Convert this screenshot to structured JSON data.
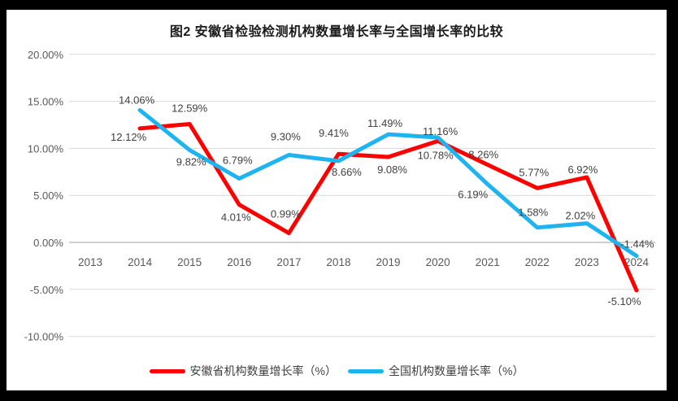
{
  "title": "图2 安徽省检验检测机构数量增长率与全国增长率的比较",
  "colors": {
    "anhui_line": "#FE0000",
    "national_line": "#1EB4F0",
    "gridline": "#D9D9D9",
    "zero_axis": "#BFBFBF",
    "axis_text": "#595959",
    "data_label_text": "#404040",
    "frame": "#000000",
    "background": "#FFFFFF"
  },
  "legend": [
    {
      "label": "安徽省机构数量增长率（%）",
      "color": "#FE0000"
    },
    {
      "label": "全国机构数量增长率（%）",
      "color": "#1EB4F0"
    }
  ],
  "chart_data": {
    "type": "line",
    "title": "图2 安徽省检验检测机构数量增长率与全国增长率的比较",
    "categories": [
      2013,
      2014,
      2015,
      2016,
      2017,
      2018,
      2019,
      2020,
      2021,
      2022,
      2023,
      2024
    ],
    "series": [
      {
        "name": "安徽省机构数量增长率（%）",
        "color": "#FE0000",
        "start_index": 1,
        "values": [
          12.12,
          12.59,
          4.01,
          0.99,
          9.41,
          9.08,
          10.78,
          8.26,
          5.77,
          6.92,
          -5.1
        ],
        "labels": [
          "12.12%",
          "12.59%",
          "4.01%",
          "0.99%",
          "9.41%",
          "9.08%",
          "10.78%",
          "8.26%",
          "5.77%",
          "6.92%",
          "-5.10%"
        ],
        "label_offsets": [
          [
            -14,
            15
          ],
          [
            0,
            -15
          ],
          [
            -4,
            20
          ],
          [
            -4,
            -19
          ],
          [
            -6,
            -21
          ],
          [
            5,
            20
          ],
          [
            -3,
            22
          ],
          [
            -5,
            -8
          ],
          [
            -4,
            -15
          ],
          [
            -5,
            -5
          ],
          [
            -15,
            18
          ]
        ]
      },
      {
        "name": "全国机构数量增长率（%）",
        "color": "#1EB4F0",
        "start_index": 1,
        "values": [
          14.06,
          9.82,
          6.79,
          9.3,
          8.66,
          11.49,
          11.16,
          6.19,
          1.58,
          2.02,
          -1.44
        ],
        "labels": [
          "14.06%",
          "9.82%",
          "6.79%",
          "9.30%",
          "8.66%",
          "11.49%",
          "11.16%",
          "6.19%",
          "1.58%",
          "2.02%",
          "-1.44%"
        ],
        "label_offsets": [
          [
            -4,
            -8
          ],
          [
            2,
            19
          ],
          [
            -2,
            -18
          ],
          [
            -4,
            -18
          ],
          [
            10,
            18
          ],
          [
            -4,
            -9
          ],
          [
            3,
            -3
          ],
          [
            -18,
            17
          ],
          [
            -5,
            -14
          ],
          [
            -8,
            -5
          ],
          [
            1,
            -10
          ]
        ]
      }
    ],
    "xlabel": "",
    "ylabel": "",
    "ylim": [
      -10,
      20
    ],
    "ytick_step": 5,
    "yticks": [
      "20.00%",
      "15.00%",
      "10.00%",
      "5.00%",
      "0.00%",
      "-5.00%",
      "-10.00%"
    ],
    "grid": true,
    "legend_position": "bottom"
  }
}
